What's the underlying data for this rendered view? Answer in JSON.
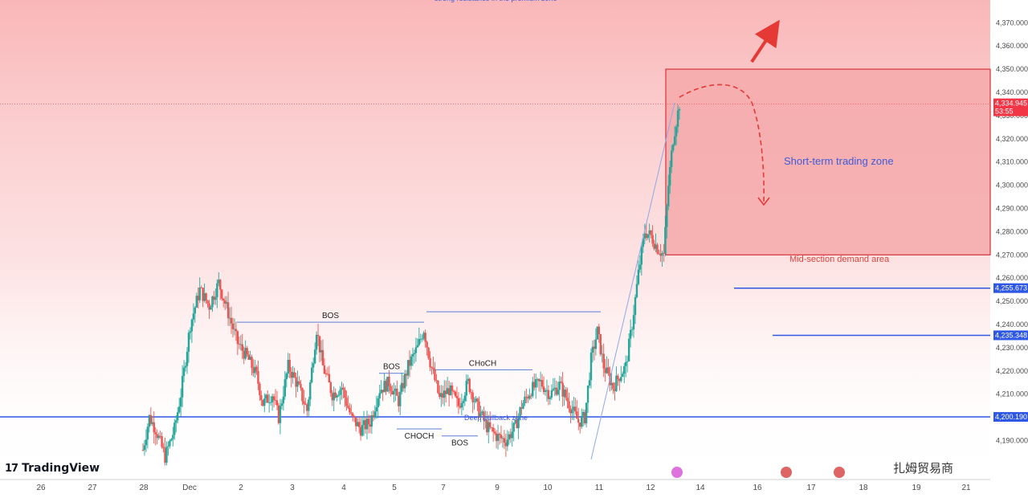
{
  "chart_data": {
    "type": "candlestick",
    "title": "",
    "price_range": [
      4180,
      4380
    ],
    "y_ticks": [
      "4,190.000",
      "4,200.000",
      "4,210.000",
      "4,220.000",
      "4,230.000",
      "4,240.000",
      "4,250.000",
      "4,260.000",
      "4,270.000",
      "4,280.000",
      "4,290.000",
      "4,300.000",
      "4,310.000",
      "4,320.000",
      "4,330.000",
      "4,340.000",
      "4,350.000",
      "4,360.000",
      "4,370.000"
    ],
    "x_ticks": [
      "26",
      "27",
      "28",
      "Dec",
      "2",
      "3",
      "4",
      "5",
      "7",
      "9",
      "10",
      "11",
      "12",
      "14",
      "16",
      "17",
      "18",
      "19",
      "21"
    ],
    "current_price": {
      "value": 4334.945,
      "label": "4,334.945",
      "countdown": "53:55"
    },
    "levels": [
      {
        "value": 4255.673,
        "label": "4,255.673"
      },
      {
        "value": 4235.348,
        "label": "4,235.348"
      },
      {
        "value": 4200.19,
        "label": "4,200.190"
      }
    ],
    "zones": {
      "premium": {
        "top": 4380,
        "bottom": 4270
      },
      "short_term": {
        "top": 4350,
        "bottom": 4270,
        "label": "Short-term trading zone",
        "sublabel": "Mid-section demand area"
      }
    },
    "structure_labels": [
      {
        "text": "BOS",
        "level": 4241
      },
      {
        "text": "BOS",
        "level": 4219
      },
      {
        "text": "CHoCH",
        "level": 4220.5
      },
      {
        "text": "CHOCH",
        "level": 4195
      },
      {
        "text": "BOS",
        "level": 4192
      },
      {
        "text": "",
        "level": 4245.5
      }
    ],
    "annotations": [
      "strong resistance in the premium zone",
      "Deep pullback zone"
    ],
    "ohlc_anchors": [
      [
        0,
        4186
      ],
      [
        4,
        4200
      ],
      [
        8,
        4195
      ],
      [
        14,
        4183
      ],
      [
        20,
        4195
      ],
      [
        24,
        4210
      ],
      [
        30,
        4240
      ],
      [
        36,
        4255
      ],
      [
        42,
        4248
      ],
      [
        48,
        4258
      ],
      [
        54,
        4245
      ],
      [
        60,
        4232
      ],
      [
        66,
        4226
      ],
      [
        72,
        4218
      ],
      [
        76,
        4206
      ],
      [
        82,
        4210
      ],
      [
        86,
        4200
      ],
      [
        92,
        4222
      ],
      [
        98,
        4214
      ],
      [
        104,
        4203
      ],
      [
        110,
        4238
      ],
      [
        114,
        4222
      ],
      [
        120,
        4210
      ],
      [
        126,
        4213
      ],
      [
        132,
        4200
      ],
      [
        138,
        4195
      ],
      [
        144,
        4198
      ],
      [
        150,
        4212
      ],
      [
        156,
        4215
      ],
      [
        162,
        4207
      ],
      [
        168,
        4222
      ],
      [
        174,
        4230
      ],
      [
        178,
        4238
      ],
      [
        182,
        4224
      ],
      [
        188,
        4208
      ],
      [
        194,
        4212
      ],
      [
        200,
        4205
      ],
      [
        206,
        4215
      ],
      [
        212,
        4204
      ],
      [
        218,
        4196
      ],
      [
        224,
        4192
      ],
      [
        230,
        4190
      ],
      [
        236,
        4196
      ],
      [
        240,
        4205
      ],
      [
        246,
        4212
      ],
      [
        252,
        4215
      ],
      [
        258,
        4210
      ],
      [
        264,
        4214
      ],
      [
        270,
        4206
      ],
      [
        276,
        4198
      ],
      [
        280,
        4200
      ],
      [
        284,
        4225
      ],
      [
        288,
        4237
      ],
      [
        292,
        4222
      ],
      [
        298,
        4213
      ],
      [
        302,
        4218
      ],
      [
        306,
        4222
      ],
      [
        310,
        4240
      ],
      [
        314,
        4262
      ],
      [
        318,
        4280
      ],
      [
        322,
        4278
      ],
      [
        326,
        4273
      ],
      [
        330,
        4270
      ],
      [
        333,
        4300
      ],
      [
        336,
        4320
      ],
      [
        340,
        4335
      ]
    ]
  },
  "branding": {
    "logo_text": "TradingView",
    "watermark": "扎姆贸易商"
  },
  "colors": {
    "bull": "#26a69a",
    "bear": "#ef5350",
    "level_line": "#2f57e6",
    "zone_fill": "#f4a9aa",
    "zone_border": "#d9323a",
    "price_tag": "#f23645"
  }
}
